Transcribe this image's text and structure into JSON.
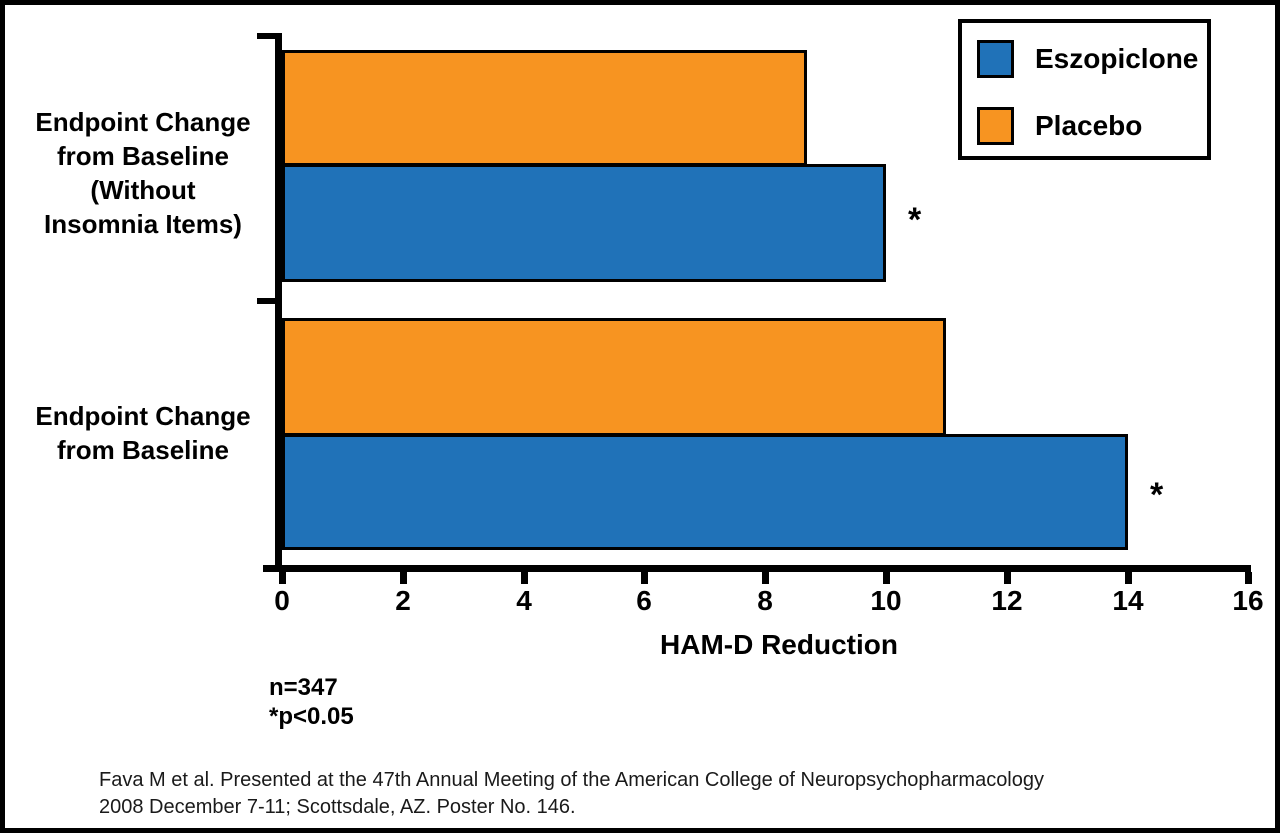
{
  "figure": {
    "legend": {
      "items": [
        {
          "label": "Eszopiclone"
        },
        {
          "label": "Placebo"
        }
      ]
    },
    "group_labels": {
      "group1": "Endpoint Change\nfrom Baseline\n(Without\nInsomnia Items)",
      "group2": "Endpoint Change\nfrom Baseline"
    },
    "xlabel": "HAM-D Reduction",
    "notes": "n=347\n*p<0.05",
    "citation": {
      "line1": "Fava M et al. Presented at the 47th Annual Meeting of the American College of Neuropsychopharmacology",
      "line2": "2008 December 7-11; Scottsdale, AZ. Poster No. 146."
    }
  },
  "chart_data": {
    "type": "bar",
    "orientation": "horizontal",
    "title": "",
    "xlabel": "HAM-D Reduction",
    "xlim": [
      0,
      16
    ],
    "xticks": [
      0,
      2,
      4,
      6,
      8,
      10,
      12,
      14,
      16
    ],
    "grid": false,
    "legend_position": "top-right",
    "categories": [
      "Endpoint Change from Baseline (Without Insomnia Items)",
      "Endpoint Change from Baseline"
    ],
    "series": [
      {
        "name": "Eszopiclone",
        "color": "#2072b8",
        "values": [
          10,
          14
        ],
        "significant": [
          true,
          true
        ]
      },
      {
        "name": "Placebo",
        "color": "#f79421",
        "values": [
          8.7,
          11
        ],
        "significant": [
          false,
          false
        ]
      }
    ],
    "significance_marker": "*",
    "annotations": [
      "n=347",
      "*p<0.05"
    ]
  }
}
